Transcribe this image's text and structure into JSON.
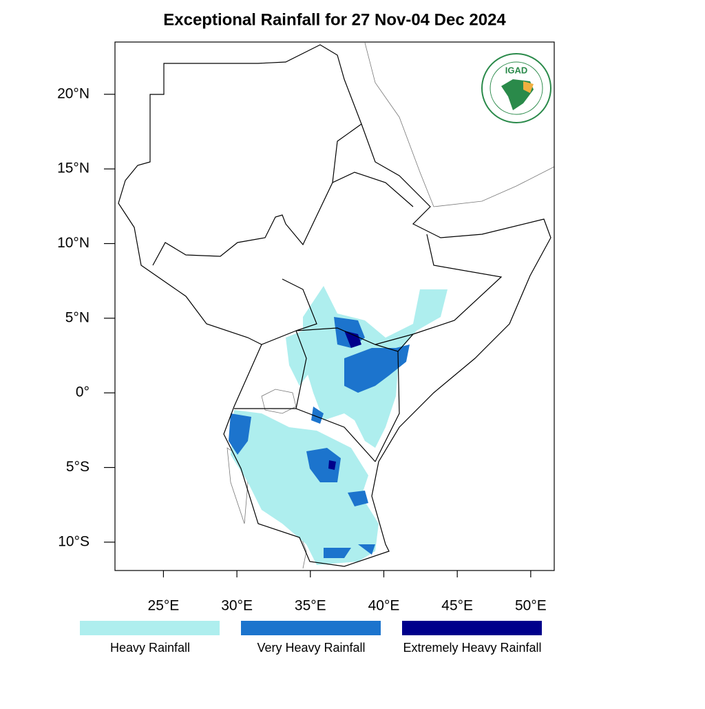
{
  "title": "Exceptional Rainfall for 27 Nov-04 Dec 2024",
  "map": {
    "xlim": [
      21.7,
      51.6
    ],
    "ylim": [
      -11.9,
      23.5
    ],
    "xticks": [
      {
        "value": 25,
        "label": "25°E"
      },
      {
        "value": 30,
        "label": "30°E"
      },
      {
        "value": 35,
        "label": "35°E"
      },
      {
        "value": 40,
        "label": "40°E"
      },
      {
        "value": 45,
        "label": "45°E"
      },
      {
        "value": 50,
        "label": "50°E"
      }
    ],
    "yticks": [
      {
        "value": 20,
        "label": "20°N"
      },
      {
        "value": 15,
        "label": "15°N"
      },
      {
        "value": 10,
        "label": "10°N"
      },
      {
        "value": 5,
        "label": "5°N"
      },
      {
        "value": 0,
        "label": "0°"
      },
      {
        "value": -5,
        "label": "5°S"
      },
      {
        "value": -10,
        "label": "10°S"
      }
    ],
    "logo_text": "IGAD"
  },
  "legend": [
    {
      "label": "Heavy Rainfall",
      "color": "#aeeeee"
    },
    {
      "label": "Very Heavy Rainfall",
      "color": "#1c74cd"
    },
    {
      "label": "Extremely Heavy Rainfall",
      "color": "#00008b"
    }
  ]
}
